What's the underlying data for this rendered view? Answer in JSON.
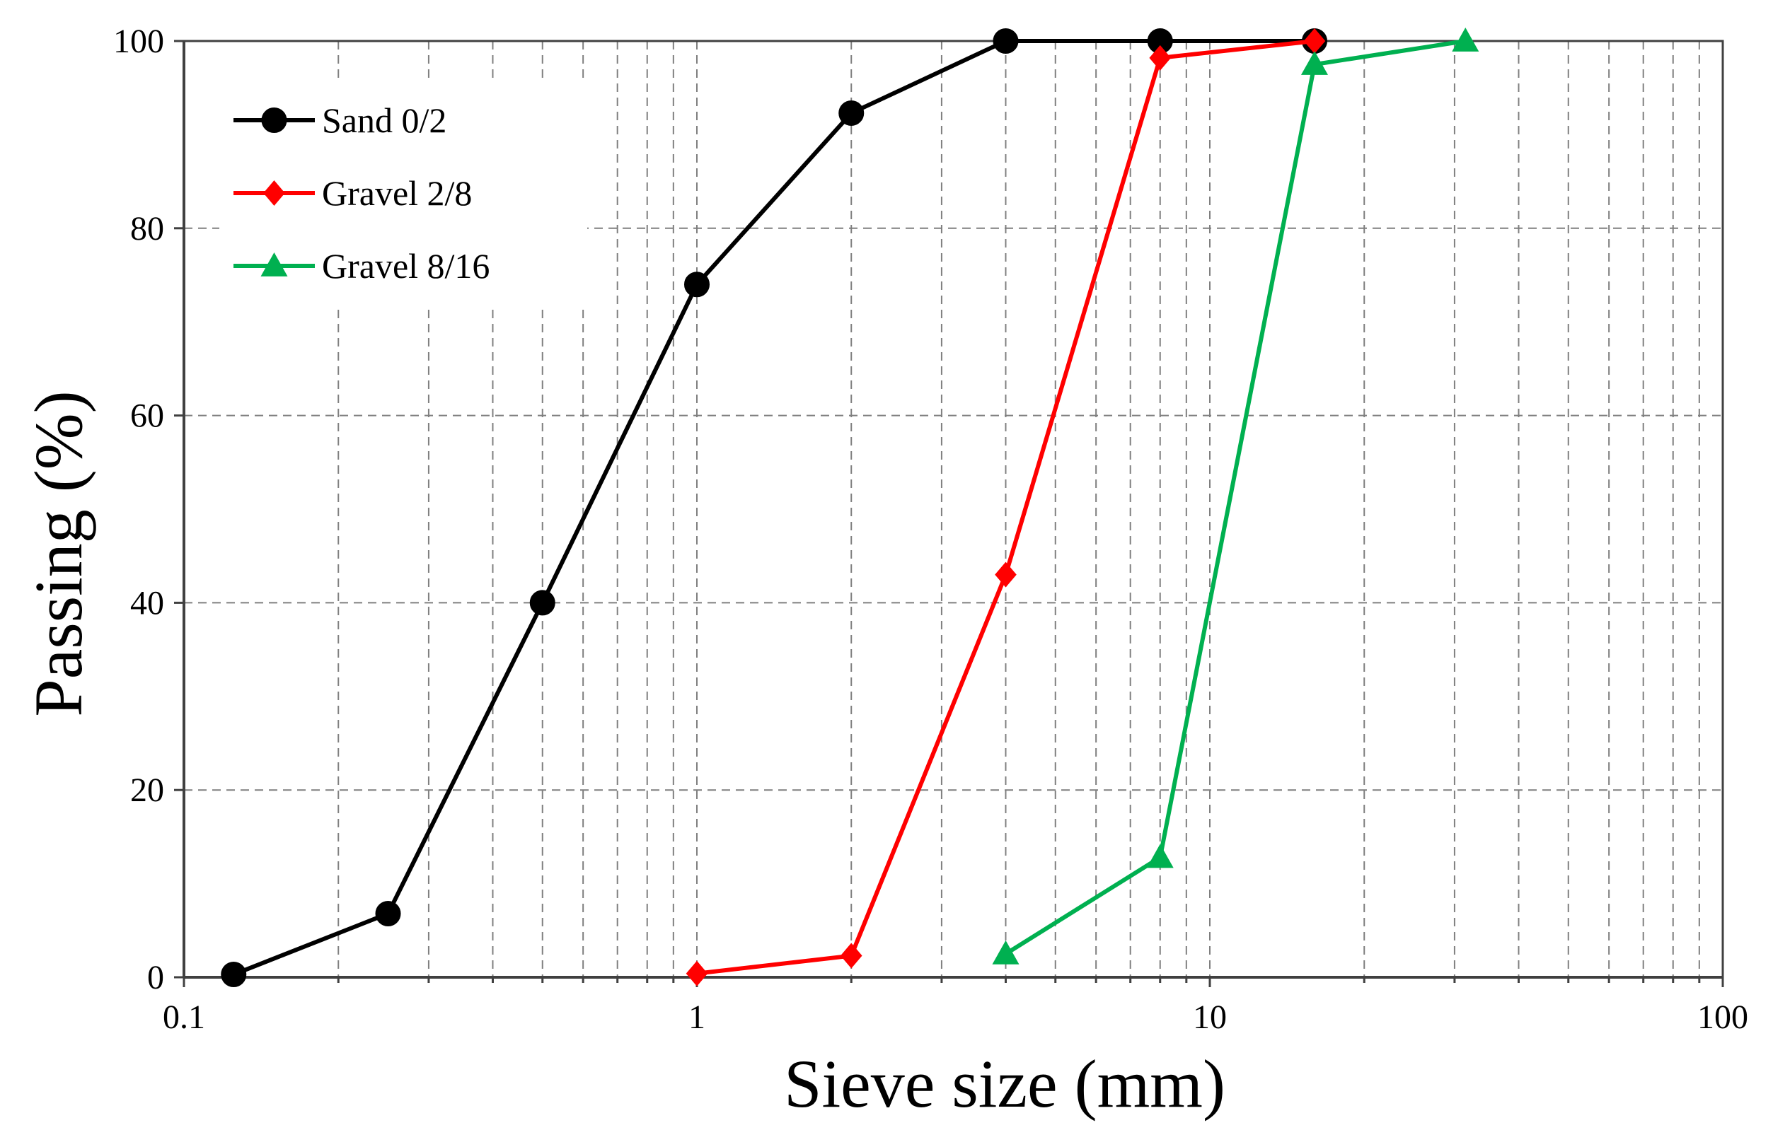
{
  "chart_data": {
    "type": "line",
    "title": "",
    "xlabel": "Sieve size (mm)",
    "ylabel": "Passing (%)",
    "xscale": "log",
    "xlim": [
      0.1,
      100
    ],
    "ylim": [
      0,
      100
    ],
    "xticks": [
      0.1,
      1,
      10,
      100
    ],
    "xtick_labels": [
      "0.1",
      "1",
      "10",
      "100"
    ],
    "yticks": [
      0,
      20,
      40,
      60,
      80,
      100
    ],
    "ytick_labels": [
      "0",
      "20",
      "40",
      "60",
      "80",
      "100"
    ],
    "grid": true,
    "legend_position": "top-left",
    "series": [
      {
        "name": "Sand 0/2",
        "color": "#000000",
        "marker": "circle",
        "x": [
          0.125,
          0.25,
          0.5,
          1,
          2,
          4,
          8,
          16
        ],
        "y": [
          0.3,
          6.8,
          40,
          74,
          92.3,
          100,
          100,
          100
        ]
      },
      {
        "name": "Gravel 2/8",
        "color": "#ff0000",
        "marker": "diamond",
        "x": [
          1,
          2,
          4,
          8,
          16
        ],
        "y": [
          0.4,
          2.3,
          43,
          98.2,
          100
        ]
      },
      {
        "name": "Gravel 8/16",
        "color": "#00b050",
        "marker": "triangle",
        "x": [
          4,
          8,
          16,
          31.5
        ],
        "y": [
          2.5,
          12.8,
          97.5,
          100
        ]
      }
    ]
  }
}
